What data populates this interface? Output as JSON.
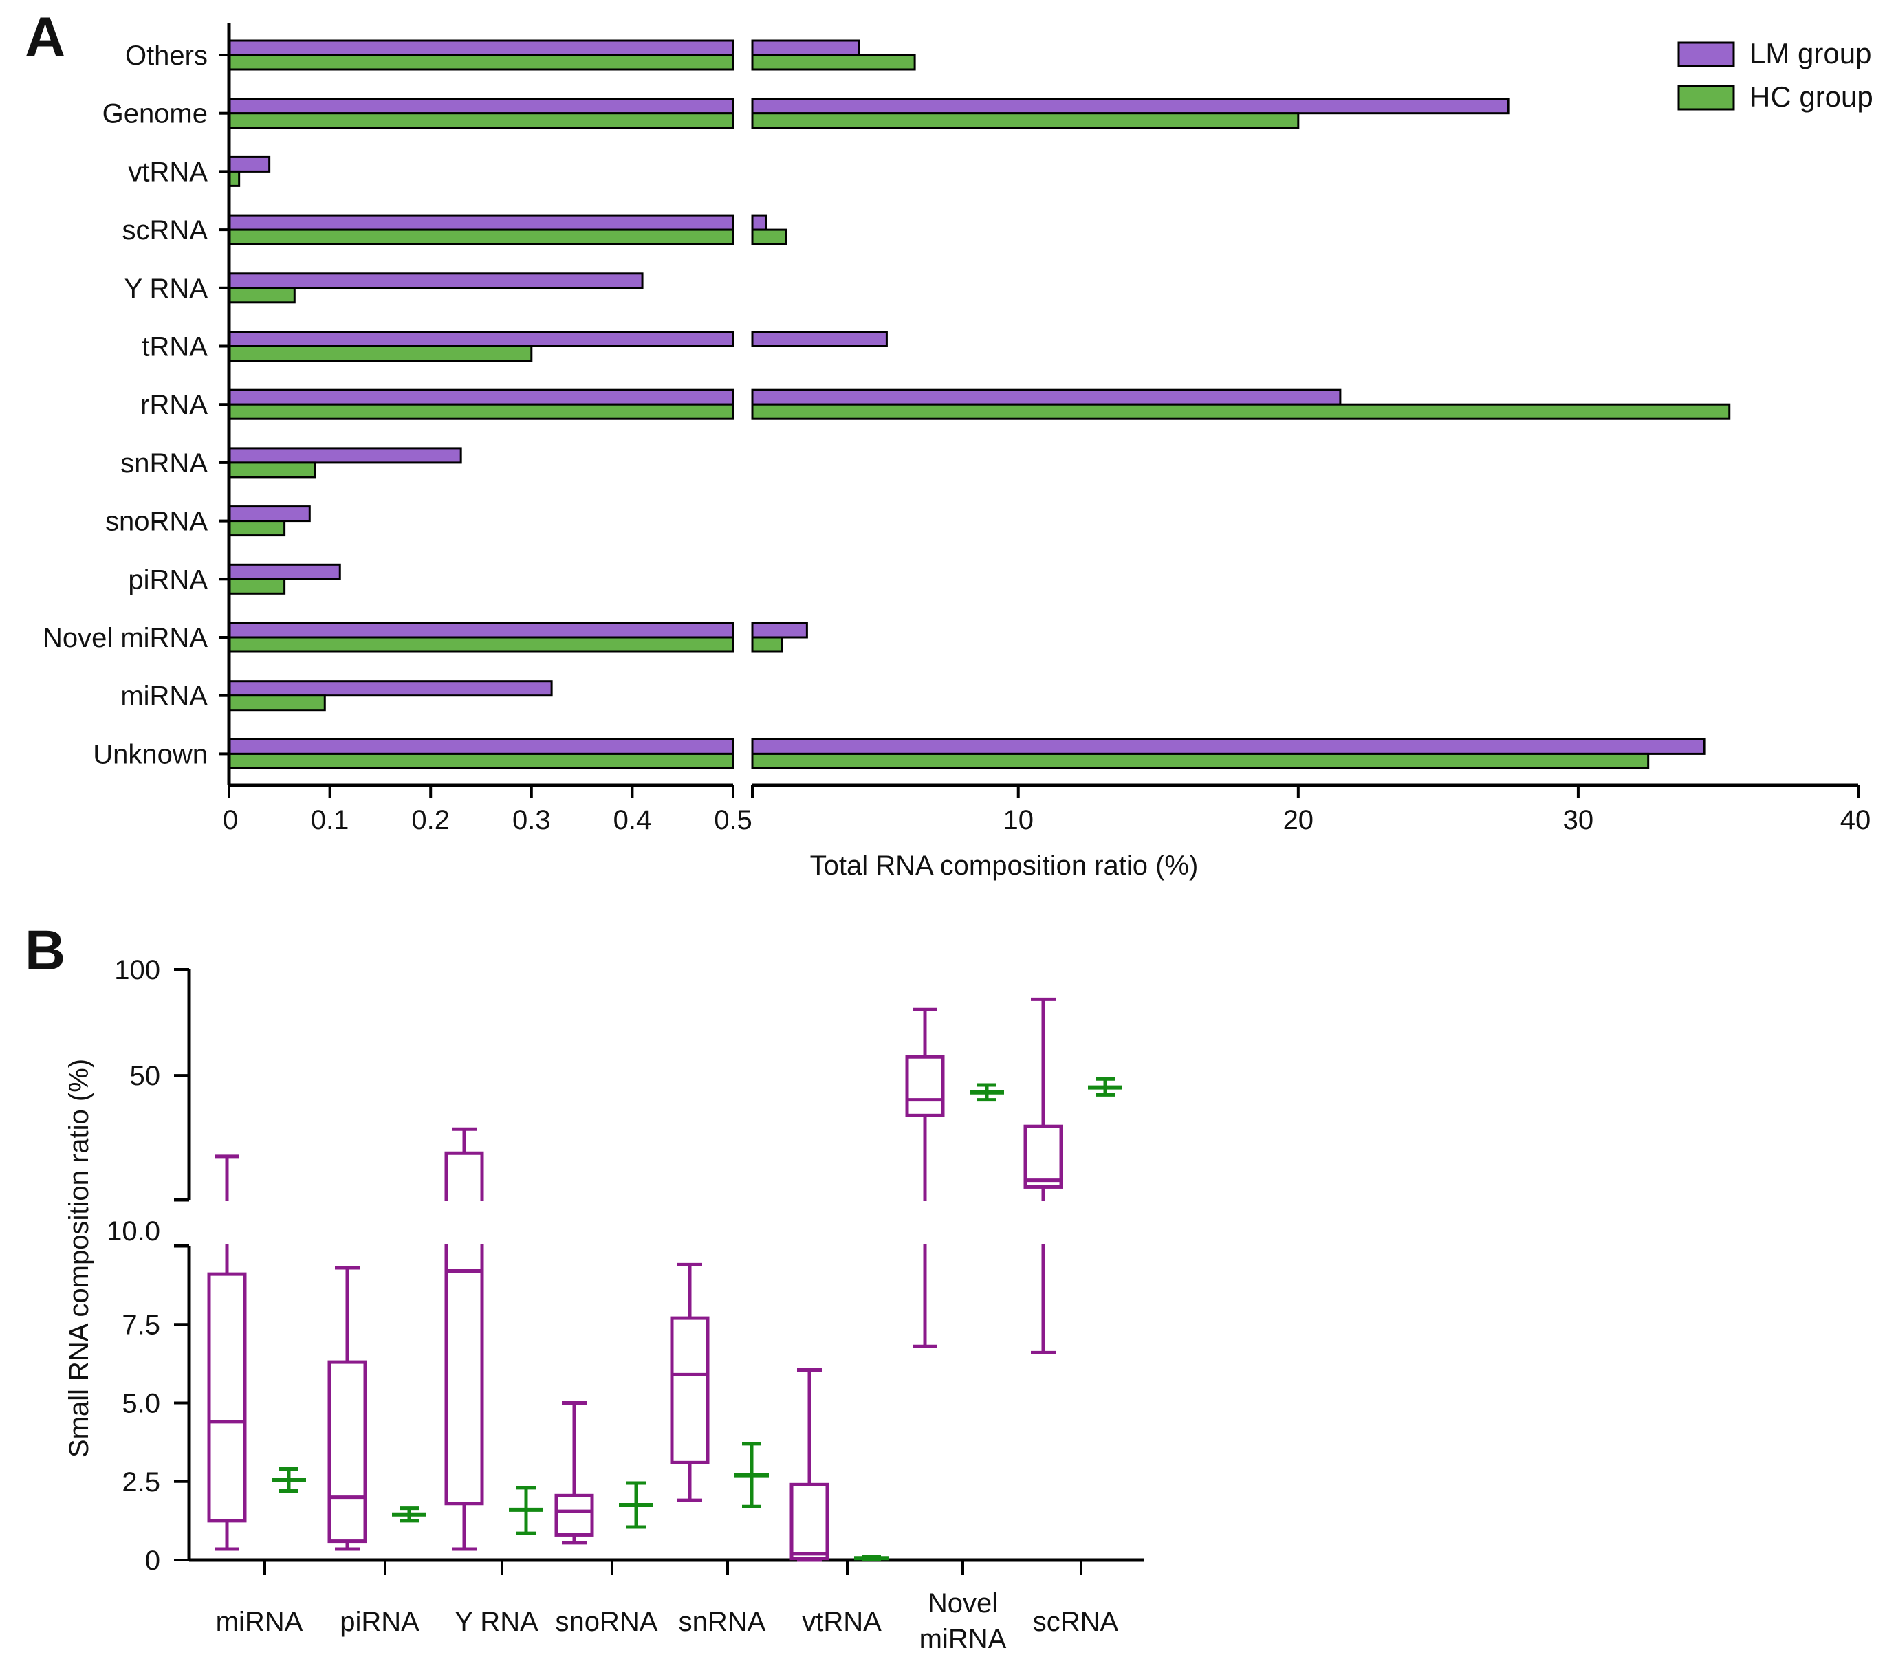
{
  "colors": {
    "lm": "#9966cc",
    "hc": "#66b34a",
    "box_lm": "#8b1a8b",
    "box_hc": "#138a13",
    "axis": "#000000"
  },
  "panel_a": {
    "letter": "A",
    "legend": {
      "lm": "LM group",
      "hc": "HC group"
    },
    "xlabel": "Total RNA composition ratio (%)"
  },
  "panel_b": {
    "letter": "B",
    "ylabel": "Small RNA composition ratio (%)"
  },
  "chart_data": [
    {
      "type": "bar",
      "orientation": "horizontal",
      "panel": "A",
      "title": "",
      "xlabel": "Total RNA composition ratio (%)",
      "axis_break": {
        "segment1_range": [
          0,
          0.5
        ],
        "segment2_range": [
          0.5,
          40
        ]
      },
      "xticks_segment1": [
        "0",
        "0.1",
        "0.2",
        "0.3",
        "0.4",
        "0.5"
      ],
      "xticks_segment2": [
        "0.5",
        "10",
        "20",
        "30",
        "40"
      ],
      "categories": [
        "Others",
        "Genome",
        "vtRNA",
        "scRNA",
        "Y RNA",
        "tRNA",
        "rRNA",
        "snRNA",
        "snoRNA",
        "piRNA",
        "Novel miRNA",
        "miRNA",
        "Unknown"
      ],
      "series": [
        {
          "name": "LM group",
          "values": [
            4.3,
            27.5,
            0.04,
            1.0,
            0.41,
            5.3,
            21.5,
            0.23,
            0.08,
            0.11,
            2.45,
            0.32,
            34.5
          ]
        },
        {
          "name": "HC group",
          "values": [
            6.3,
            20.0,
            0.01,
            1.7,
            0.065,
            0.3,
            35.4,
            0.085,
            0.055,
            0.055,
            1.55,
            0.095,
            32.5
          ]
        }
      ],
      "legend_position": "top-right"
    },
    {
      "type": "box",
      "panel": "B",
      "title": "",
      "ylabel": "Small RNA composition ratio (%)",
      "y_axis_break": {
        "lower_range": [
          0,
          10
        ],
        "upper_range": [
          10,
          100
        ]
      },
      "yticks": [
        "0",
        "2.5",
        "5.0",
        "7.5",
        "10.0",
        "50",
        "100"
      ],
      "categories": [
        "miRNA",
        "piRNA",
        "Y RNA",
        "snoRNA",
        "snRNA",
        "vtRNA",
        "Novel miRNA",
        "scRNA"
      ],
      "category_labels": [
        [
          "miRNA"
        ],
        [
          "piRNA"
        ],
        [
          "Y RNA"
        ],
        [
          "snoRNA"
        ],
        [
          "snRNA"
        ],
        [
          "vtRNA"
        ],
        [
          "Novel",
          "miRNA"
        ],
        [
          "scRNA"
        ]
      ],
      "series": [
        {
          "name": "LM group",
          "stats": [
            {
              "min": 0.35,
              "q1": 1.25,
              "median": 4.4,
              "q3": 9.1,
              "max": 20.0
            },
            {
              "min": 0.35,
              "q1": 0.6,
              "median": 2.0,
              "q3": 6.3,
              "max": 9.3
            },
            {
              "min": 0.35,
              "q1": 1.8,
              "median": 9.2,
              "q3": 21.0,
              "max": 29.0
            },
            {
              "min": 0.55,
              "q1": 0.8,
              "median": 1.55,
              "q3": 2.05,
              "max": 5.0
            },
            {
              "min": 1.9,
              "q1": 3.1,
              "median": 5.9,
              "q3": 7.7,
              "max": 9.4
            },
            {
              "min": 0.0,
              "q1": 0.05,
              "median": 0.2,
              "q3": 2.4,
              "max": 6.05
            },
            {
              "min": 6.8,
              "q1": 34.0,
              "median": 40.0,
              "q3": 58.0,
              "max": 80.0
            },
            {
              "min": 6.6,
              "q1": 12.0,
              "median": 13.5,
              "q3": 30.0,
              "max": 85.0
            }
          ]
        },
        {
          "name": "HC group",
          "stats": [
            {
              "low": 2.2,
              "mid": 2.55,
              "high": 2.9
            },
            {
              "low": 1.25,
              "mid": 1.45,
              "high": 1.65
            },
            {
              "low": 0.85,
              "mid": 1.6,
              "high": 2.3
            },
            {
              "low": 1.05,
              "mid": 1.75,
              "high": 2.45
            },
            {
              "low": 1.7,
              "mid": 2.7,
              "high": 3.7
            },
            {
              "low": 0.02,
              "mid": 0.06,
              "high": 0.1
            },
            {
              "low": 40.0,
              "mid": 43.0,
              "high": 46.0
            },
            {
              "low": 42.0,
              "mid": 45.0,
              "high": 48.5
            }
          ]
        }
      ]
    }
  ]
}
